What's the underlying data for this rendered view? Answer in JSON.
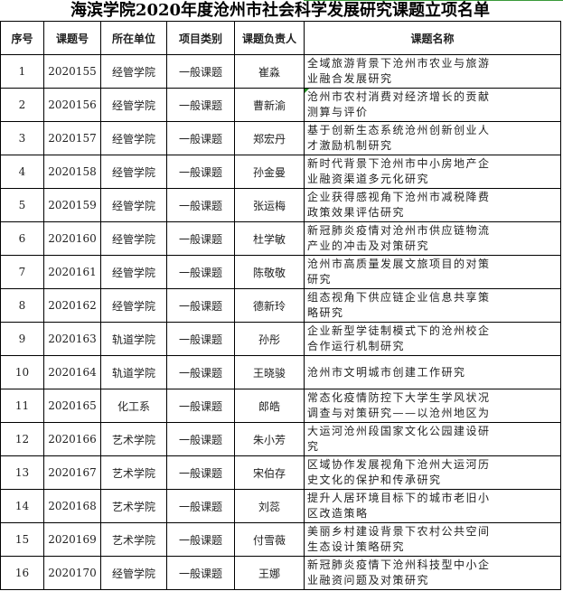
{
  "title": "海滨学院2020年度沧州市社会科学发展研究课题立项名单",
  "headers": [
    "序号",
    "课题号",
    "所在单位",
    "项目类别",
    "课题负责人",
    "课题名称"
  ],
  "rows": [
    {
      "no": "1",
      "code": "2020155",
      "unit": "经管学院",
      "type": "一般课题",
      "leader": "崔淼",
      "name1": "全域旅游背景下沧州市农业与旅游",
      "name2": "业融合发展研究"
    },
    {
      "no": "2",
      "code": "2020156",
      "unit": "经管学院",
      "type": "一般课题",
      "leader": "曹新渝",
      "name1": "沧州市农村消费对经济增长的贡献",
      "name2": "测算与评价"
    },
    {
      "no": "3",
      "code": "2020157",
      "unit": "经管学院",
      "type": "一般课题",
      "leader": "郑宏丹",
      "name1": "基于创新生态系统沧州创新创业人",
      "name2": "才激励机制研究"
    },
    {
      "no": "4",
      "code": "2020158",
      "unit": "经管学院",
      "type": "一般课题",
      "leader": "孙金曼",
      "name1": "新时代背景下沧州市中小房地产企",
      "name2": "业融资渠道多元化研究"
    },
    {
      "no": "5",
      "code": "2020159",
      "unit": "经管学院",
      "type": "一般课题",
      "leader": "张运梅",
      "name1": "企业获得感视角下沧州市减税降费",
      "name2": "政策效果评估研究"
    },
    {
      "no": "6",
      "code": "2020160",
      "unit": "经管学院",
      "type": "一般课题",
      "leader": "杜学敏",
      "name1": "新冠肺炎疫情对沧州市供应链物流",
      "name2": "产业的冲击及对策研究"
    },
    {
      "no": "7",
      "code": "2020161",
      "unit": "经管学院",
      "type": "一般课题",
      "leader": "陈敬敬",
      "name1": "沧州市高质量发展文旅项目的对策",
      "name2": "研究"
    },
    {
      "no": "8",
      "code": "2020162",
      "unit": "经管学院",
      "type": "一般课题",
      "leader": "德新玲",
      "name1": "组态视角下供应链企业信息共享策",
      "name2": "略研究"
    },
    {
      "no": "9",
      "code": "2020163",
      "unit": "轨道学院",
      "type": "一般课题",
      "leader": "孙彤",
      "name1": "企业新型学徒制模式下的沧州校企",
      "name2": "合作运行机制研究"
    },
    {
      "no": "10",
      "code": "2020164",
      "unit": "轨道学院",
      "type": "一般课题",
      "leader": "王晓骏",
      "name1": "沧州市文明城市创建工作研究",
      "name2": ""
    },
    {
      "no": "11",
      "code": "2020165",
      "unit": "化工系",
      "type": "一般课题",
      "leader": "郎皓",
      "name1": "常态化疫情防控下大学生学风状况",
      "name2": "调查与对策研究——以沧州地区为"
    },
    {
      "no": "12",
      "code": "2020166",
      "unit": "艺术学院",
      "type": "一般课题",
      "leader": "朱小芳",
      "name1": "大运河沧州段国家文化公园建设研",
      "name2": "究"
    },
    {
      "no": "13",
      "code": "2020167",
      "unit": "艺术学院",
      "type": "一般课题",
      "leader": "宋伯存",
      "name1": "区域协作发展视角下沧州大运河历",
      "name2": "史文化的保护和传承研究"
    },
    {
      "no": "14",
      "code": "2020168",
      "unit": "艺术学院",
      "type": "一般课题",
      "leader": "刘蕊",
      "name1": "提升人居环境目标下的城市老旧小",
      "name2": "区改造策略"
    },
    {
      "no": "15",
      "code": "2020169",
      "unit": "艺术学院",
      "type": "一般课题",
      "leader": "付雪薇",
      "name1": "美丽乡村建设背景下农村公共空间",
      "name2": "生态设计策略研究"
    },
    {
      "no": "16",
      "code": "2020170",
      "unit": "经管学院",
      "type": "一般课题",
      "leader": "王娜",
      "name1": "新冠肺炎疫情下沧州科技型中小企",
      "name2": "业融资问题及对策研究"
    }
  ]
}
